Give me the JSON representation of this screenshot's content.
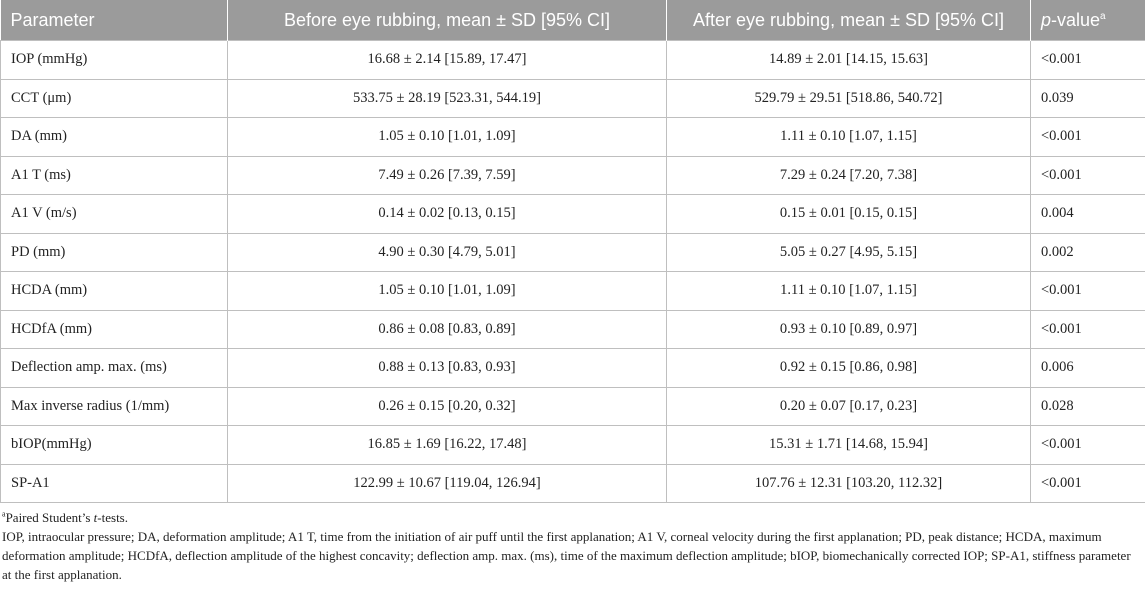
{
  "table": {
    "headers": {
      "parameter": "Parameter",
      "before": "Before eye rubbing, mean ± SD [95% CI]",
      "after": "After eye rubbing, mean ± SD [95% CI]",
      "pvalue_italic": "p",
      "pvalue_rest": "-value",
      "pvalue_sup": "a"
    },
    "rows": [
      {
        "param": "IOP (mmHg)",
        "before": "16.68 ± 2.14 [15.89, 17.47]",
        "after": "14.89 ± 2.01 [14.15, 15.63]",
        "p": "<0.001"
      },
      {
        "param": "CCT (μm)",
        "before": "533.75 ± 28.19 [523.31, 544.19]",
        "after": "529.79 ± 29.51 [518.86, 540.72]",
        "p": "0.039"
      },
      {
        "param": "DA (mm)",
        "before": "1.05 ± 0.10 [1.01, 1.09]",
        "after": "1.11 ± 0.10 [1.07, 1.15]",
        "p": "<0.001"
      },
      {
        "param": "A1 T (ms)",
        "before": "7.49 ± 0.26 [7.39, 7.59]",
        "after": "7.29 ± 0.24 [7.20, 7.38]",
        "p": "<0.001"
      },
      {
        "param": "A1 V (m/s)",
        "before": "0.14 ± 0.02 [0.13, 0.15]",
        "after": "0.15 ± 0.01 [0.15, 0.15]",
        "p": "0.004"
      },
      {
        "param": "PD (mm)",
        "before": "4.90 ± 0.30 [4.79, 5.01]",
        "after": "5.05 ± 0.27 [4.95, 5.15]",
        "p": "0.002"
      },
      {
        "param": "HCDA (mm)",
        "before": "1.05 ± 0.10 [1.01, 1.09]",
        "after": "1.11 ± 0.10 [1.07, 1.15]",
        "p": "<0.001"
      },
      {
        "param": "HCDfA (mm)",
        "before": "0.86 ± 0.08 [0.83, 0.89]",
        "after": "0.93 ± 0.10 [0.89, 0.97]",
        "p": "<0.001"
      },
      {
        "param": "Deflection amp. max. (ms)",
        "before": "0.88 ± 0.13 [0.83, 0.93]",
        "after": "0.92 ± 0.15 [0.86, 0.98]",
        "p": "0.006"
      },
      {
        "param": "Max inverse radius (1/mm)",
        "before": "0.26 ± 0.15 [0.20, 0.32]",
        "after": "0.20 ± 0.07 [0.17, 0.23]",
        "p": "0.028"
      },
      {
        "param": "bIOP(mmHg)",
        "before": "16.85 ± 1.69 [16.22, 17.48]",
        "after": "15.31 ± 1.71 [14.68, 15.94]",
        "p": "<0.001"
      },
      {
        "param": "SP-A1",
        "before": "122.99 ± 10.67 [119.04, 126.94]",
        "after": "107.76 ± 12.31 [103.20, 112.32]",
        "p": "<0.001"
      }
    ]
  },
  "footnotes": {
    "note_a_sup": "a",
    "note_a_prefix": "Paired Student’s ",
    "note_a_italic": "t",
    "note_a_suffix": "-tests.",
    "abbreviations": "IOP, intraocular pressure; DA, deformation amplitude; A1 T, time from the initiation of air puff until the first applanation; A1 V, corneal velocity during the first applanation; PD, peak distance; HCDA, maximum deformation amplitude; HCDfA, deflection amplitude of the highest concavity; deflection amp. max. (ms), time of the maximum deflection amplitude; bIOP, biomechanically corrected IOP; SP-A1, stiffness parameter at the first applanation."
  }
}
